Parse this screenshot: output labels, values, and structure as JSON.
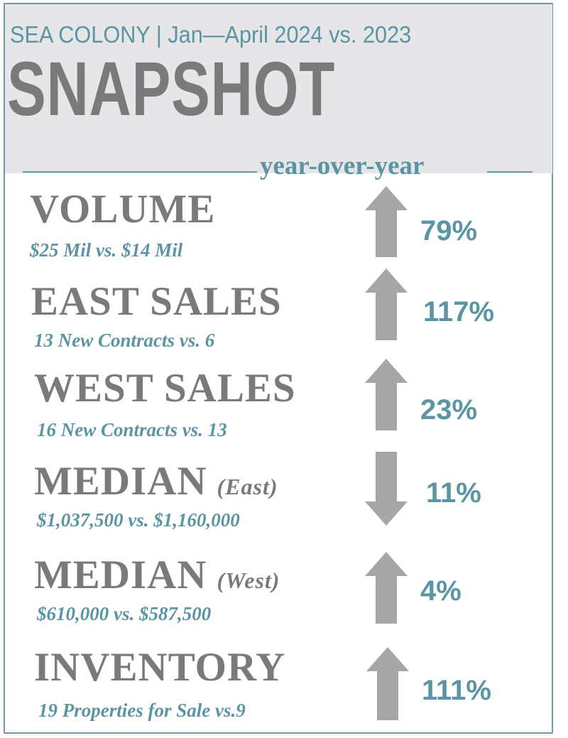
{
  "header": {
    "subtitle": "SEA COLONY |  Jan—April  2024 vs. 2023",
    "title": "SNAPSHOT",
    "yoy_label": "year-over-year"
  },
  "metrics": [
    {
      "name": "VOLUME",
      "qualifier": "",
      "detail": "$25 Mil  vs. $14 Mil",
      "direction": "up",
      "percent": "79%"
    },
    {
      "name": "EAST SALES",
      "qualifier": "",
      "detail": "13 New Contracts vs. 6",
      "direction": "up",
      "percent": "117%"
    },
    {
      "name": "WEST SALES",
      "qualifier": "",
      "detail": "16 New Contracts vs. 13",
      "direction": "up",
      "percent": "23%"
    },
    {
      "name": "MEDIAN",
      "qualifier": "(East)",
      "detail": "$1,037,500 vs. $1,160,000",
      "direction": "down",
      "percent": "11%"
    },
    {
      "name": "MEDIAN",
      "qualifier": "(West)",
      "detail": "$610,000 vs. $587,500",
      "direction": "up",
      "percent": "4%"
    },
    {
      "name": "INVENTORY",
      "qualifier": "",
      "detail": "19 Properties for Sale vs.9",
      "direction": "up",
      "percent": "111%"
    }
  ],
  "colors": {
    "accent": "#5b95a3",
    "heading_gray": "#7a7a7a",
    "arrow_gray": "#a6a6a6",
    "header_band": "#e6e6e8"
  }
}
